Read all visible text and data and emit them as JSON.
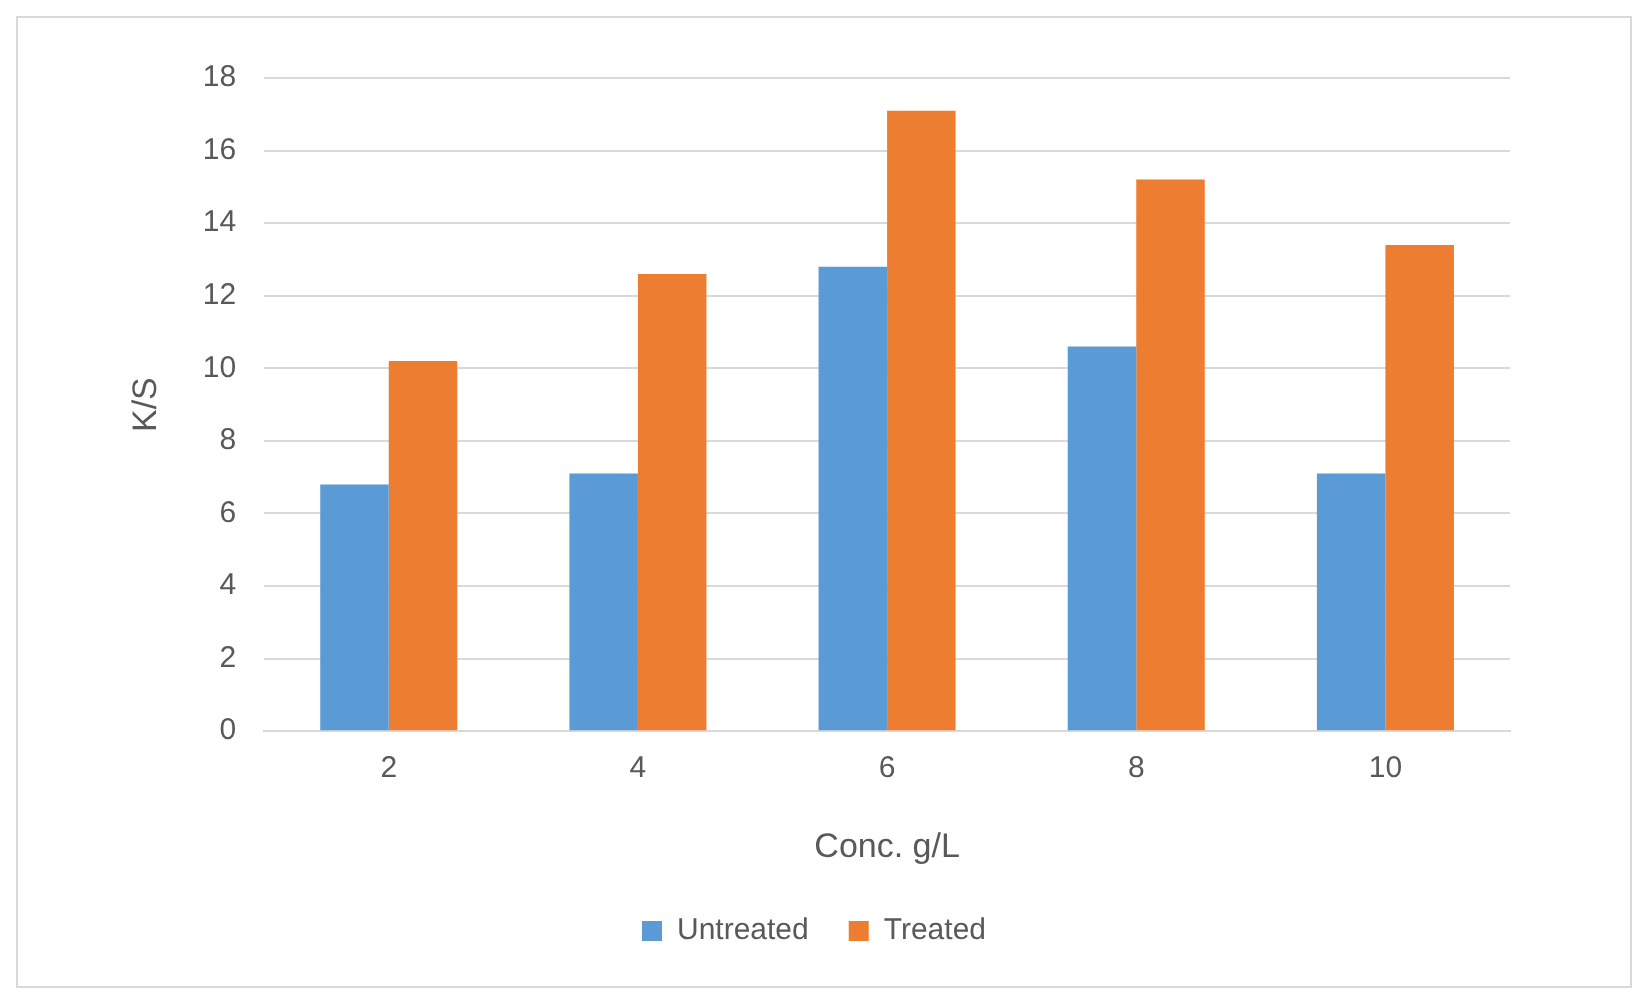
{
  "chart_data": {
    "type": "bar",
    "xlabel": "Conc. g/L",
    "ylabel": "K/S",
    "categories": [
      "2",
      "4",
      "6",
      "8",
      "10"
    ],
    "series": [
      {
        "name": "Untreated",
        "color": "#5b9bd5",
        "values": [
          6.8,
          7.1,
          12.8,
          10.6,
          7.1
        ]
      },
      {
        "name": "Treated",
        "color": "#ed7d31",
        "values": [
          10.2,
          12.6,
          17.1,
          15.2,
          13.4
        ]
      }
    ],
    "ylim": [
      0,
      18
    ],
    "yticks": [
      0,
      2,
      4,
      6,
      8,
      10,
      12,
      14,
      16,
      18
    ],
    "grid": "y",
    "legend": "bottom"
  }
}
